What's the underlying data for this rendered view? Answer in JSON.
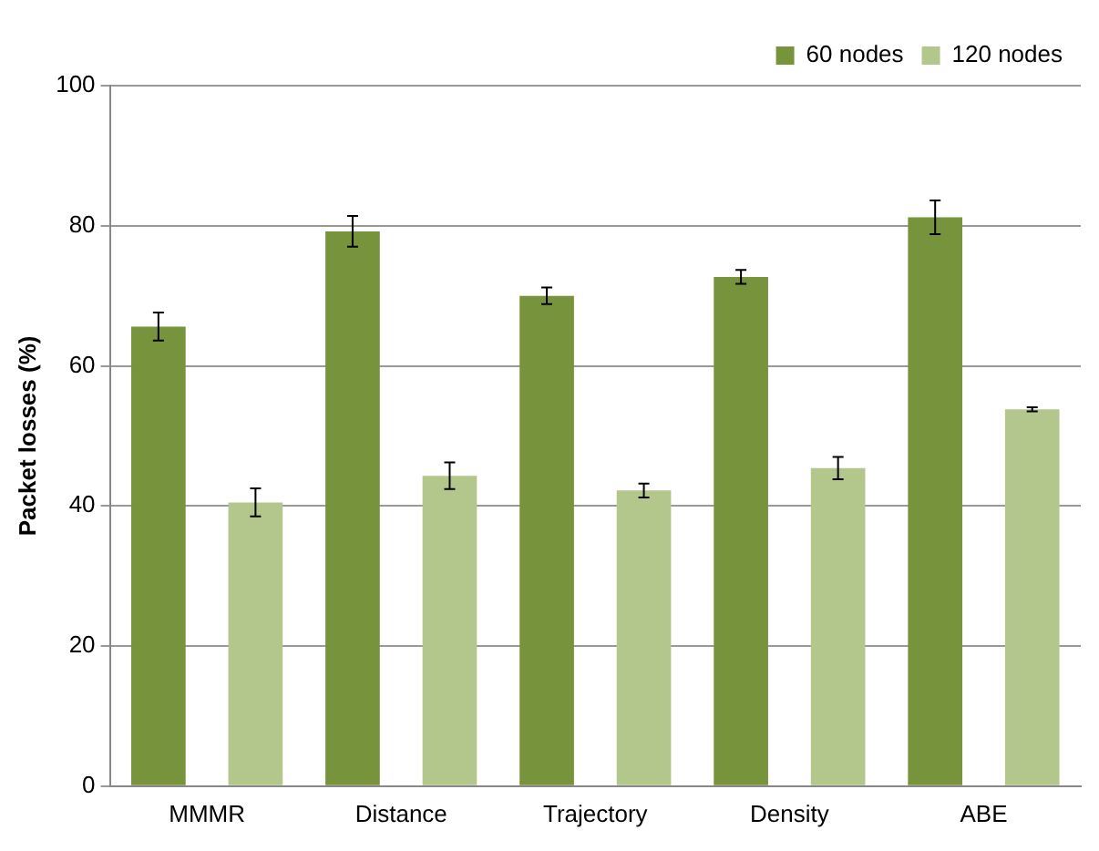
{
  "chart_data": {
    "type": "bar",
    "ylabel": "Packet losses (%)",
    "categories": [
      "MMMR",
      "Distance",
      "Trajectory",
      "Density",
      "ABE"
    ],
    "series": [
      {
        "name": "60 nodes",
        "color": "#77933c",
        "values": [
          65.6,
          79.2,
          70.0,
          72.7,
          81.2
        ],
        "errors": [
          2,
          2.2,
          1.2,
          1,
          2.4
        ]
      },
      {
        "name": "120 nodes",
        "color": "#b3c78c",
        "values": [
          40.5,
          44.3,
          42.2,
          45.4,
          53.8
        ],
        "errors": [
          2,
          1.9,
          1,
          1.6,
          0.3
        ]
      }
    ],
    "ylim": [
      0,
      100
    ],
    "yticks": [
      0,
      20,
      40,
      60,
      80,
      100
    ],
    "grid": "y",
    "legend": "top right"
  }
}
